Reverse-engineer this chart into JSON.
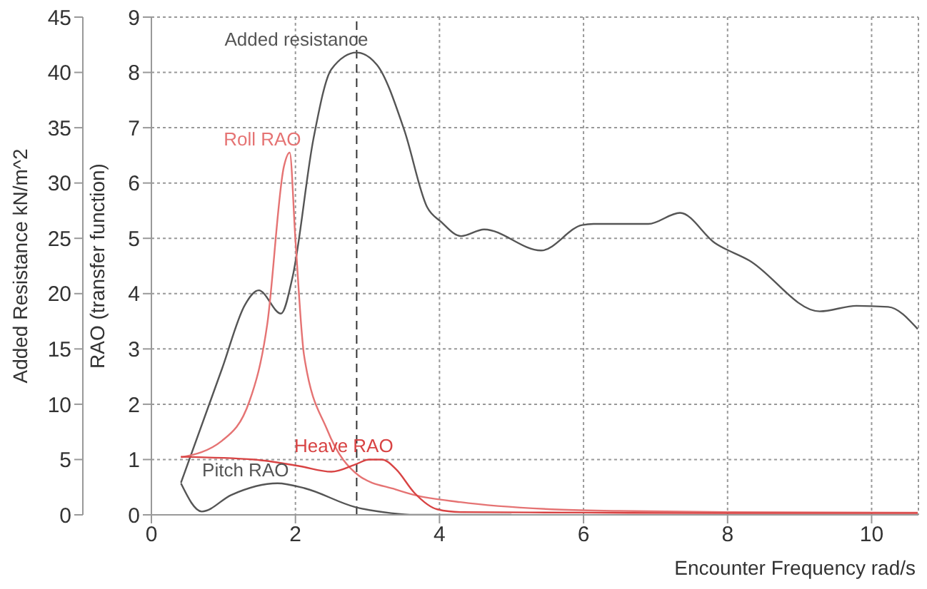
{
  "chart_data": {
    "type": "line",
    "xlabel": "Encounter Frequency  rad/s",
    "ylabel": "RAO (transfer function)",
    "y2label": "Added Resistance  kN/m^2",
    "xlim": [
      0,
      10.65
    ],
    "xticks": [
      0,
      2,
      4,
      6,
      8,
      10
    ],
    "ylim": [
      0,
      9
    ],
    "yticks": [
      0,
      1,
      2,
      3,
      4,
      5,
      6,
      7,
      8,
      9
    ],
    "y2lim": [
      0,
      45
    ],
    "y2ticks": [
      0,
      5,
      10,
      15,
      20,
      25,
      30,
      35,
      40,
      45
    ],
    "grid": true,
    "legend": false,
    "marker": "none",
    "line_style": "solid",
    "ref_lines": [
      {
        "axis": "x",
        "value": 2.85,
        "color": "#333333",
        "line_style": "dashed"
      }
    ],
    "series": [
      {
        "name": "Added resistance",
        "axis": "y2",
        "color": "#555555",
        "x": [
          0.41,
          0.98,
          1.3,
          1.49,
          1.8,
          1.96,
          2.25,
          2.5,
          2.85,
          3.13,
          3.51,
          3.83,
          4.02,
          4.3,
          4.62,
          5.41,
          5.98,
          6.14,
          6.9,
          7.34,
          7.82,
          8.3,
          9.28,
          9.79,
          10.23,
          10.64
        ],
        "values": [
          2.9,
          13.2,
          19,
          20.3,
          18.2,
          21.5,
          34,
          40.3,
          41.8,
          40.7,
          34.8,
          27.8,
          26.5,
          25.2,
          25.8,
          23.9,
          26.2,
          26.3,
          26.3,
          27.3,
          24.6,
          23,
          18.4,
          18.9,
          18.8,
          16.8
        ]
      },
      {
        "name": "Roll RAO",
        "color": "#e57373",
        "x": [
          0.41,
          0.98,
          1.36,
          1.61,
          1.84,
          1.92,
          2.0,
          2.12,
          2.44,
          2.88,
          3.39,
          3.65,
          4.29,
          5.56,
          6.5,
          8,
          10.64
        ],
        "values": [
          1.04,
          1.34,
          2.05,
          3.46,
          6.3,
          6.55,
          4.97,
          2.88,
          1.54,
          0.71,
          0.46,
          0.36,
          0.23,
          0.1,
          0.07,
          0.05,
          0.04
        ]
      },
      {
        "name": "Heave RAO",
        "color": "#d84343",
        "x": [
          0.41,
          1.43,
          2.06,
          2.5,
          2.83,
          3.02,
          3.2,
          3.4,
          3.65,
          3.97,
          4.29,
          6,
          8,
          10.64
        ],
        "values": [
          1.05,
          1.0,
          0.88,
          0.78,
          0.91,
          1.0,
          1.0,
          0.82,
          0.4,
          0.1,
          0.05,
          0.04,
          0.03,
          0.03
        ]
      },
      {
        "name": "Pitch RAO",
        "color": "#555555",
        "x": [
          0.41,
          0.7,
          1.11,
          1.75,
          2.13,
          2.83,
          3.33,
          3.65,
          5.0
        ],
        "values": [
          0.57,
          0.06,
          0.36,
          0.57,
          0.48,
          0.14,
          0.03,
          0,
          0
        ]
      }
    ]
  }
}
